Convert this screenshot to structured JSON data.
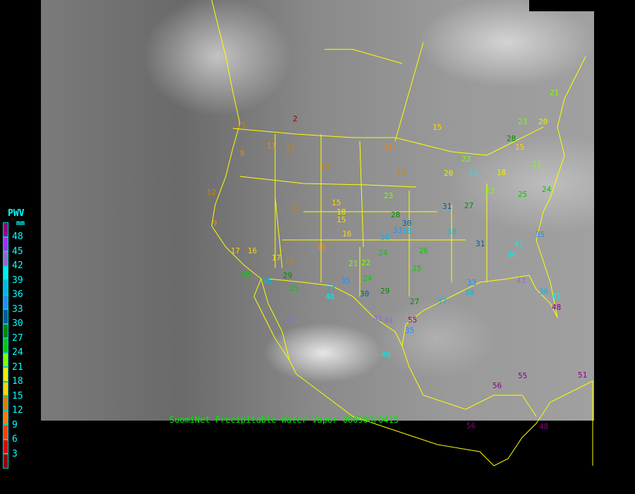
{
  "caption": "SuomiNet Precipitable Water Vapor 080908/0415",
  "legend": {
    "title": "PWV",
    "unit": "mm",
    "labels": [
      "48",
      "45",
      "42",
      "39",
      "36",
      "33",
      "30",
      "27",
      "24",
      "21",
      "18",
      "15",
      "12",
      "9",
      "6",
      "3"
    ],
    "colors": [
      "#8b008b",
      "#9933ff",
      "#8a6fd0",
      "#00eeee",
      "#00b8e8",
      "#1e90ff",
      "#005f9f",
      "#008b00",
      "#00cd00",
      "#7fff00",
      "#eeee00",
      "#ffd700",
      "#cd8500",
      "#ff8000",
      "#ff4500",
      "#dd0000",
      "#8b0000"
    ]
  },
  "border_color": "#ffff00",
  "stations": [
    2,
    13,
    11,
    13,
    9,
    14,
    11,
    13,
    12,
    12,
    15,
    18,
    15,
    9,
    16,
    17,
    16,
    10,
    17,
    12,
    25,
    29,
    25,
    36,
    37,
    40,
    35,
    30,
    24,
    22,
    21,
    23,
    28,
    30,
    38,
    33,
    36,
    24,
    29,
    27,
    37,
    42,
    44,
    55,
    35,
    40,
    43,
    31,
    38,
    27,
    22,
    25,
    39,
    41,
    33,
    38,
    43,
    36,
    41,
    48,
    56,
    55,
    51,
    56,
    48,
    21,
    23,
    20,
    28,
    15,
    15,
    20,
    41,
    18,
    24,
    35,
    22,
    21,
    31,
    26,
    25
  ]
}
